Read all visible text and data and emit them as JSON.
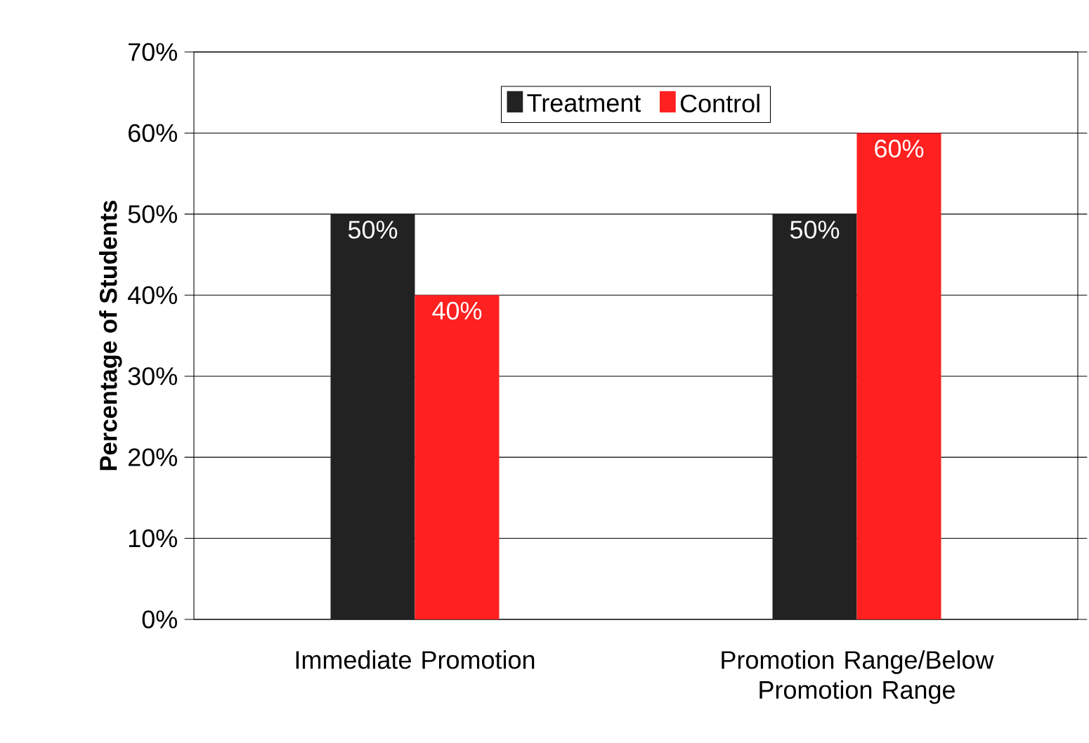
{
  "chart_data": {
    "type": "bar",
    "ylabel": "Percentage of Students",
    "categories": [
      "Immediate Promotion",
      "Promotion Range/Below Promotion Range"
    ],
    "series": [
      {
        "name": "Treatment",
        "color": "#222222",
        "values": [
          50,
          50
        ],
        "value_labels": [
          "50%",
          "50%"
        ]
      },
      {
        "name": "Control",
        "color": "#ff2020",
        "values": [
          40,
          60
        ],
        "value_labels": [
          "40%",
          "60%"
        ]
      }
    ],
    "ylim": [
      0,
      70
    ],
    "yticks": [
      {
        "value": 0,
        "label": "0%"
      },
      {
        "value": 10,
        "label": "10%"
      },
      {
        "value": 20,
        "label": "20%"
      },
      {
        "value": 30,
        "label": "30%"
      },
      {
        "value": 40,
        "label": "40%"
      },
      {
        "value": 50,
        "label": "50%"
      },
      {
        "value": 60,
        "label": "60%"
      },
      {
        "value": 70,
        "label": "70%"
      }
    ],
    "grid": "y",
    "legend": "top"
  }
}
